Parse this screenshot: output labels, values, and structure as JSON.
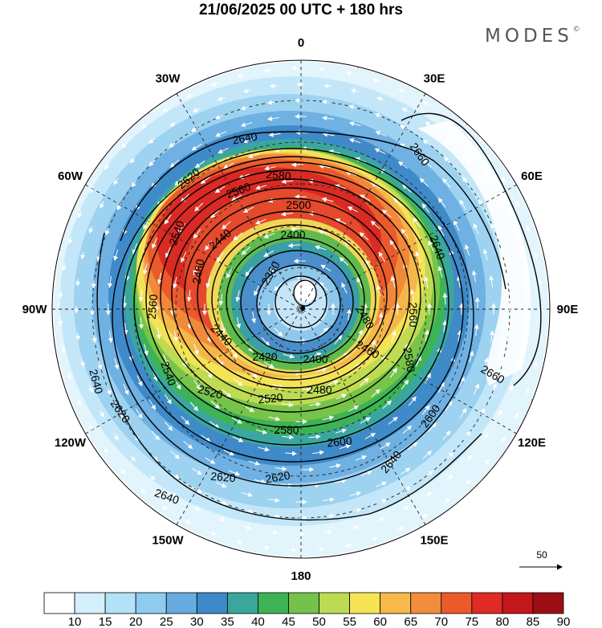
{
  "title": "21/06/2025  00 UTC  + 180 hrs",
  "brand": "MODES",
  "brand_mark": "©",
  "longitude_labels": [
    {
      "text": "0",
      "lon": 0
    },
    {
      "text": "30E",
      "lon": 30
    },
    {
      "text": "60E",
      "lon": 60
    },
    {
      "text": "90E",
      "lon": 90
    },
    {
      "text": "120E",
      "lon": 120
    },
    {
      "text": "150E",
      "lon": 150
    },
    {
      "text": "180",
      "lon": 180
    },
    {
      "text": "150W",
      "lon": -150
    },
    {
      "text": "120W",
      "lon": -120
    },
    {
      "text": "90W",
      "lon": -90
    },
    {
      "text": "60W",
      "lon": -60
    },
    {
      "text": "30W",
      "lon": -30
    }
  ],
  "contour_labels": [
    {
      "text": "2640"
    },
    {
      "text": "2620"
    },
    {
      "text": "2580"
    },
    {
      "text": "2560"
    },
    {
      "text": "2500"
    },
    {
      "text": "2540"
    },
    {
      "text": "2440"
    },
    {
      "text": "2400"
    },
    {
      "text": "2480"
    },
    {
      "text": "2360"
    },
    {
      "text": "2660"
    },
    {
      "text": "2640"
    },
    {
      "text": "2560"
    },
    {
      "text": "2560"
    },
    {
      "text": "2480"
    },
    {
      "text": "2440"
    },
    {
      "text": "2420"
    },
    {
      "text": "2400"
    },
    {
      "text": "2460"
    },
    {
      "text": "2580"
    },
    {
      "text": "2540"
    },
    {
      "text": "2520"
    },
    {
      "text": "2520"
    },
    {
      "text": "2480"
    },
    {
      "text": "2640"
    },
    {
      "text": "2620"
    },
    {
      "text": "2580"
    },
    {
      "text": "2600"
    },
    {
      "text": "2600"
    },
    {
      "text": "2660"
    },
    {
      "text": "2620"
    },
    {
      "text": "2620"
    },
    {
      "text": "2640"
    },
    {
      "text": "2640"
    }
  ],
  "colorbar": {
    "ticks": [
      "10",
      "15",
      "20",
      "25",
      "30",
      "35",
      "40",
      "45",
      "50",
      "55",
      "60",
      "65",
      "70",
      "75",
      "80",
      "85",
      "90"
    ],
    "colors": [
      "#ffffff",
      "#d4f0fc",
      "#b3e2f8",
      "#8fcbef",
      "#67ace0",
      "#3e8ac8",
      "#3aa69c",
      "#3db356",
      "#74c24a",
      "#bddb52",
      "#f6e455",
      "#f7b94a",
      "#f28d3b",
      "#ec5a2c",
      "#df2b23",
      "#c4171c",
      "#9b0f14"
    ]
  },
  "vector_reference": {
    "label": "50"
  }
}
